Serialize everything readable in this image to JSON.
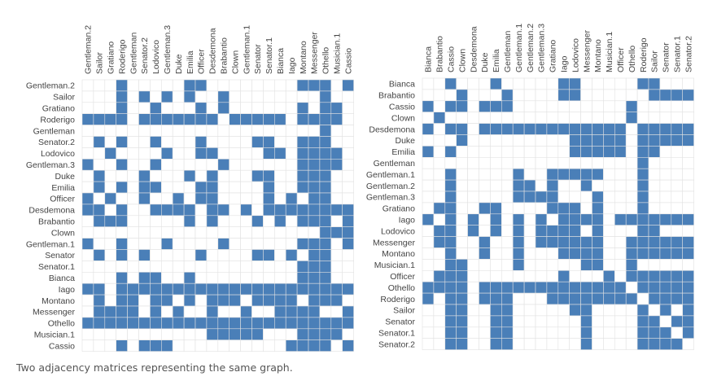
{
  "caption": "Two adjacency matrices representing the same graph.",
  "colors": {
    "filled": "#4a7fb8",
    "empty": "#ffffff",
    "grid": "#e2e2e2",
    "label": "#444444"
  },
  "matrices": [
    {
      "id": "left",
      "nodes": [
        "Gentleman.2",
        "Sailor",
        "Gratiano",
        "Roderigo",
        "Gentleman",
        "Senator.2",
        "Lodovico",
        "Gentleman.3",
        "Duke",
        "Emilia",
        "Officer",
        "Desdemona",
        "Brabantio",
        "Clown",
        "Gentleman.1",
        "Senator",
        "Senator.1",
        "Bianca",
        "Iago",
        "Montano",
        "Messenger",
        "Othello",
        "Musician.1",
        "Cassio"
      ],
      "rows": [
        "000100000110000000011101",
        "000101010100100000000100",
        "000100100010100000010110",
        "111101111111011111011110",
        "000000000000000000000100",
        "010100100010000110011100",
        "001000010011000011011110",
        "100100100000100000011110",
        "010001000101000110011100",
        "010101100011000010011100",
        "101001001011000010101100",
        "110100111101101011111111",
        "011100000101000101011101",
        "000000000000000000000111",
        "100100010000100000011101",
        "010101000010000110101100",
        "000000000000000000011100",
        "000101100100000000011100",
        "110111111111111111111111",
        "010110110101110111101110",
        "011110101001001001111001",
        "111111111111111111111111",
        "000000000001111100011110",
        "000101110000000000111101"
      ]
    },
    {
      "id": "right",
      "nodes": [
        "Bianca",
        "Brabantio",
        "Cassio",
        "Clown",
        "Desdemona",
        "Duke",
        "Emilia",
        "Gentleman",
        "Gentleman.1",
        "Gentleman.2",
        "Gentleman.3",
        "Gratiano",
        "Iago",
        "Lodovico",
        "Messenger",
        "Montano",
        "Musician.1",
        "Officer",
        "Othello",
        "Roderigo",
        "Sailor",
        "Senator",
        "Senator.1",
        "Senator.2"
      ],
      "rows": [
        "001000100000110000011000",
        "000100010000110000001111",
        "101101110000000000100000",
        "010000000000000000100000",
        "101101111111111111011111",
        "000100000000011111011111",
        "101000000000011111011000",
        "000000000000000000010000",
        "001000001001111100010000",
        "001000001101001000010000",
        "001000001111000100010000",
        "011001100001110100010000",
        "101010101010111101111111",
        "011010101011110100011000",
        "011001001011111100111111",
        "001001001000111100111111",
        "001100001000001100100000",
        "011100000000100010111111",
        "111101111111111111011111",
        "101101110001111111101111",
        "001100110000011000010101",
        "001100110000001000011011",
        "001100110000001000011101",
        "001100110000001000011110"
      ]
    }
  ]
}
